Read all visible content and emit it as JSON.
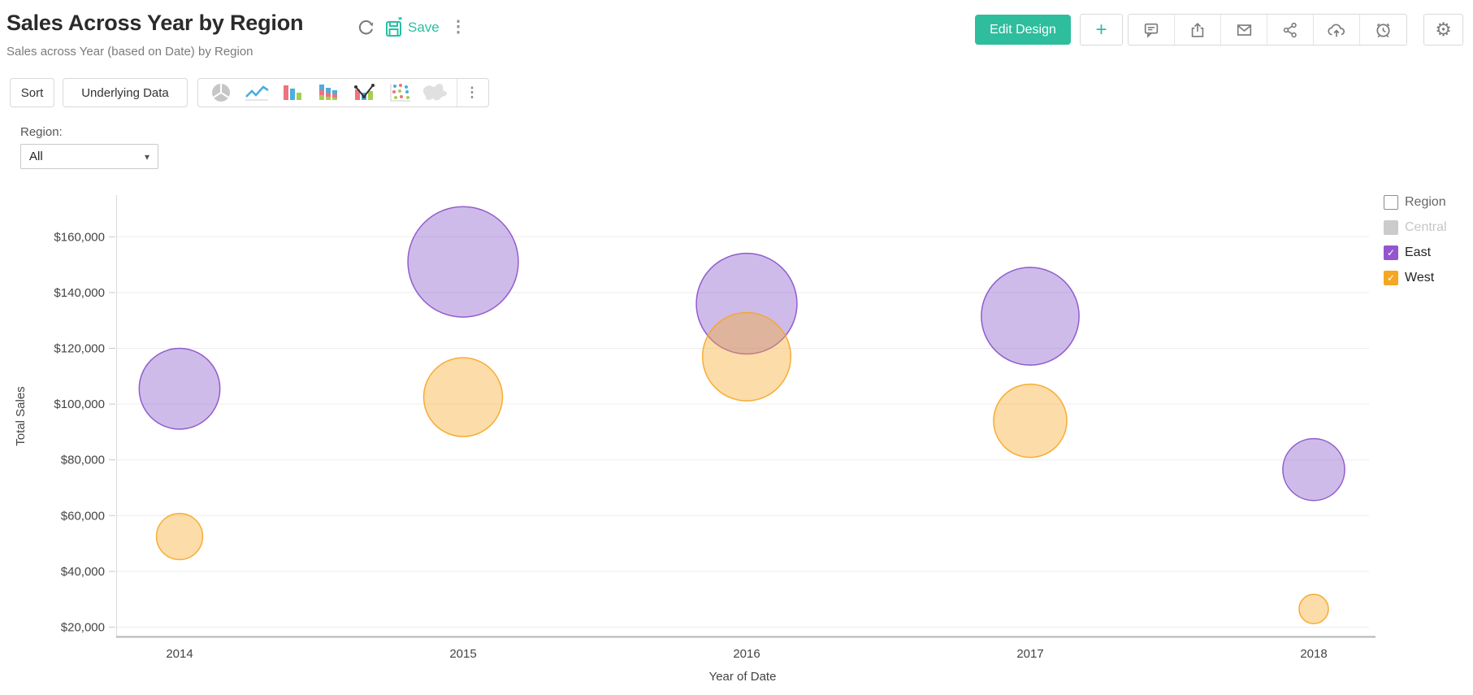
{
  "header": {
    "title": "Sales Across Year by Region",
    "subtitle": "Sales across Year (based on Date) by Region",
    "save_label": "Save",
    "edit_design_label": "Edit Design",
    "accent_color": "#2ebd9d",
    "action_icons": [
      "refresh-icon",
      "save-icon",
      "more-options-icon",
      "add-icon",
      "comment-icon",
      "export-icon",
      "email-icon",
      "share-icon",
      "cloud-upload-icon",
      "schedule-icon",
      "settings-icon"
    ]
  },
  "icons": {
    "plus": "+",
    "kebab": "⋮",
    "gear": "⚙",
    "caret_down": "▾",
    "check": "✓"
  },
  "toolbar": {
    "sort_label": "Sort",
    "underlying_data_label": "Underlying Data",
    "chart_types": [
      "pie",
      "line",
      "bar",
      "stacked-bar",
      "bar-line-combo",
      "scatter",
      "map"
    ]
  },
  "filter": {
    "label": "Region:",
    "value": "All"
  },
  "legend": {
    "title": "Region",
    "items": [
      {
        "label": "Central",
        "color": "#cbcbcb",
        "checked": false,
        "disabled": true
      },
      {
        "label": "East",
        "color": "#9455ce",
        "checked": true,
        "disabled": false
      },
      {
        "label": "West",
        "color": "#f5a623",
        "checked": true,
        "disabled": false
      }
    ]
  },
  "chart_data": {
    "type": "scatter",
    "subtype": "bubble",
    "title": "Sales Across Year by Region",
    "xlabel": "Year of Date",
    "ylabel": "Total Sales",
    "categories": [
      "2014",
      "2015",
      "2016",
      "2017",
      "2018"
    ],
    "y_ticks": [
      20000,
      40000,
      60000,
      80000,
      100000,
      120000,
      140000,
      160000
    ],
    "y_tick_prefix": "$",
    "ylim": [
      16000,
      175000
    ],
    "grid": true,
    "legend_position": "right",
    "size_metric": "Total Sales",
    "series": [
      {
        "name": "East",
        "fill": "#8b5dce",
        "stroke": "#8a4fc8",
        "values": [
          105500,
          151000,
          136000,
          131500,
          76500
        ]
      },
      {
        "name": "West",
        "fill": "#f8ab30",
        "stroke": "#f5a623",
        "values": [
          52500,
          102500,
          117000,
          94000,
          26500
        ]
      }
    ]
  }
}
